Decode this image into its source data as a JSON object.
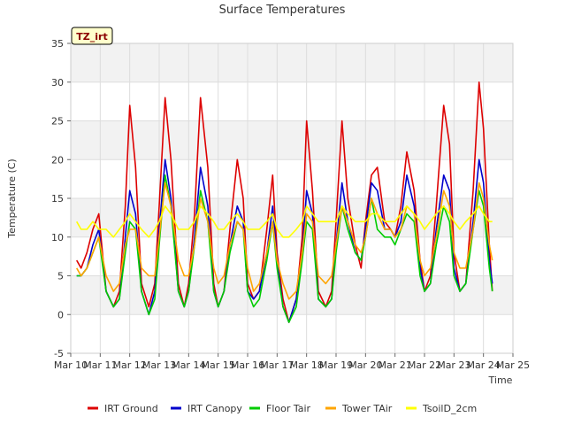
{
  "chart_data": {
    "type": "line",
    "title": "Surface Temperatures",
    "xlabel": "Time",
    "ylabel": "Temperature (C)",
    "badge": "TZ_irt",
    "x_ticks": [
      "Mar 10",
      "Mar 11",
      "Mar 12",
      "Mar 13",
      "Mar 14",
      "Mar 15",
      "Mar 16",
      "Mar 17",
      "Mar 18",
      "Mar 19",
      "Mar 20",
      "Mar 21",
      "Mar 22",
      "Mar 23",
      "Mar 24",
      "Mar 25"
    ],
    "xlim": [
      0,
      15
    ],
    "y_ticks": [
      -5,
      0,
      5,
      10,
      15,
      20,
      25,
      30,
      35
    ],
    "ylim": [
      -5,
      35
    ],
    "grid": true,
    "legend_position": "bottom",
    "x": [
      0.2,
      0.35,
      0.55,
      0.75,
      0.95,
      1.2,
      1.45,
      1.65,
      1.85,
      2.0,
      2.2,
      2.4,
      2.65,
      2.85,
      3.0,
      3.2,
      3.4,
      3.65,
      3.85,
      4.0,
      4.2,
      4.4,
      4.65,
      4.85,
      5.0,
      5.2,
      5.4,
      5.65,
      5.85,
      6.0,
      6.2,
      6.4,
      6.65,
      6.85,
      7.0,
      7.2,
      7.4,
      7.65,
      7.85,
      8.0,
      8.2,
      8.4,
      8.65,
      8.85,
      9.0,
      9.2,
      9.4,
      9.65,
      9.85,
      10.0,
      10.2,
      10.4,
      10.65,
      10.85,
      11.0,
      11.2,
      11.4,
      11.65,
      11.85,
      12.0,
      12.2,
      12.4,
      12.65,
      12.85,
      13.0,
      13.2,
      13.4,
      13.65,
      13.85,
      14.0,
      14.2,
      14.3
    ],
    "series": [
      {
        "name": "IRT Ground",
        "color": "#dd0000",
        "values": [
          7,
          6,
          8,
          11,
          13,
          3,
          1,
          3,
          14,
          27,
          19,
          4,
          1,
          4,
          14,
          28,
          20,
          4,
          1,
          4,
          13,
          28,
          19,
          4,
          1,
          3,
          11,
          20,
          15,
          4,
          2,
          3,
          11,
          18,
          8,
          2,
          -1,
          2,
          10,
          25,
          16,
          3,
          1,
          3,
          12,
          25,
          15,
          9,
          6,
          12,
          18,
          19,
          12,
          11,
          10,
          14,
          21,
          16,
          7,
          3,
          5,
          14,
          27,
          22,
          8,
          3,
          4,
          16,
          30,
          24,
          9,
          3
        ]
      },
      {
        "name": "IRT Canopy",
        "color": "#0000cc",
        "values": [
          5,
          5,
          6,
          9,
          11,
          3,
          1,
          2,
          10,
          16,
          13,
          3,
          0,
          3,
          11,
          20,
          15,
          3,
          1,
          3,
          10,
          19,
          14,
          3,
          1,
          3,
          9,
          14,
          12,
          3,
          2,
          3,
          8,
          14,
          7,
          1,
          -1,
          2,
          8,
          16,
          13,
          2,
          1,
          2,
          9,
          17,
          12,
          8,
          7,
          11,
          17,
          16,
          11,
          11,
          10,
          12,
          18,
          14,
          6,
          3,
          4,
          11,
          18,
          16,
          6,
          3,
          4,
          12,
          20,
          17,
          7,
          4
        ]
      },
      {
        "name": "Floor Tair",
        "color": "#00cc00",
        "values": [
          5,
          5,
          6,
          8,
          10,
          3,
          1,
          2,
          8,
          12,
          11,
          3,
          0,
          2,
          9,
          18,
          14,
          3,
          1,
          3,
          9,
          16,
          12,
          3,
          1,
          3,
          8,
          12,
          11,
          3,
          1,
          2,
          7,
          12,
          6,
          1,
          -1,
          1,
          7,
          12,
          11,
          2,
          1,
          2,
          8,
          14,
          11,
          8,
          7,
          10,
          15,
          11,
          10,
          10,
          9,
          11,
          13,
          12,
          5,
          3,
          4,
          9,
          14,
          12,
          5,
          3,
          4,
          11,
          16,
          14,
          6,
          3
        ]
      },
      {
        "name": "Tower TAir",
        "color": "#ffa500",
        "values": [
          6,
          5,
          6,
          8,
          10,
          5,
          3,
          4,
          9,
          11,
          11,
          6,
          5,
          5,
          10,
          17,
          14,
          7,
          5,
          5,
          9,
          15,
          12,
          6,
          4,
          5,
          9,
          12,
          11,
          6,
          3,
          4,
          8,
          12,
          7,
          4,
          2,
          3,
          8,
          13,
          12,
          5,
          4,
          5,
          9,
          14,
          12,
          9,
          8,
          10,
          15,
          13,
          11,
          11,
          10,
          11,
          14,
          13,
          7,
          5,
          6,
          10,
          16,
          14,
          8,
          6,
          6,
          11,
          17,
          15,
          9,
          7
        ]
      },
      {
        "name": "TsoilD_2cm",
        "color": "#ffff00",
        "values": [
          12,
          11,
          11,
          12,
          11,
          11,
          10,
          11,
          12,
          13,
          12,
          11,
          10,
          11,
          12,
          14,
          13,
          11,
          11,
          11,
          12,
          14,
          13,
          12,
          11,
          11,
          12,
          13,
          12,
          11,
          11,
          11,
          12,
          13,
          11,
          10,
          10,
          11,
          12,
          14,
          13,
          12,
          12,
          12,
          12,
          14,
          13,
          12,
          12,
          12,
          13,
          13,
          12,
          12,
          12,
          13,
          14,
          13,
          12,
          11,
          12,
          13,
          14,
          13,
          12,
          11,
          12,
          13,
          14,
          13,
          12,
          12
        ]
      }
    ]
  }
}
